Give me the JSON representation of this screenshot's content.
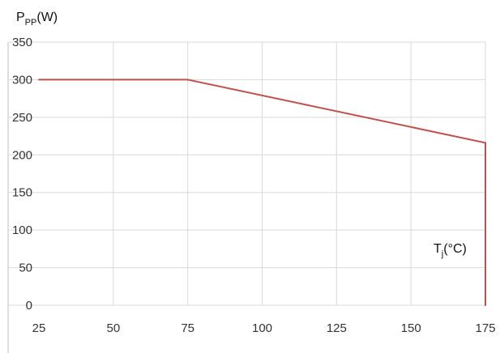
{
  "chart_data": {
    "type": "line",
    "ylabel": {
      "main": "P",
      "sub": "PP",
      "rest": "(W)"
    },
    "xlabel": {
      "main": "T",
      "sub": "j",
      "rest": "(°C)"
    },
    "x_ticks": [
      25,
      50,
      75,
      100,
      125,
      150,
      175
    ],
    "y_ticks": [
      0,
      50,
      100,
      150,
      200,
      250,
      300,
      350
    ],
    "xlim": [
      25,
      175
    ],
    "ylim": [
      0,
      350
    ],
    "grid": true,
    "series": [
      {
        "color": "#c0504d",
        "x": [
          25,
          75,
          175,
          175
        ],
        "y": [
          300,
          300,
          216,
          0
        ]
      }
    ]
  },
  "colors": {
    "grid": "#d9d9d9",
    "axis_border": "#bfbfbf"
  }
}
